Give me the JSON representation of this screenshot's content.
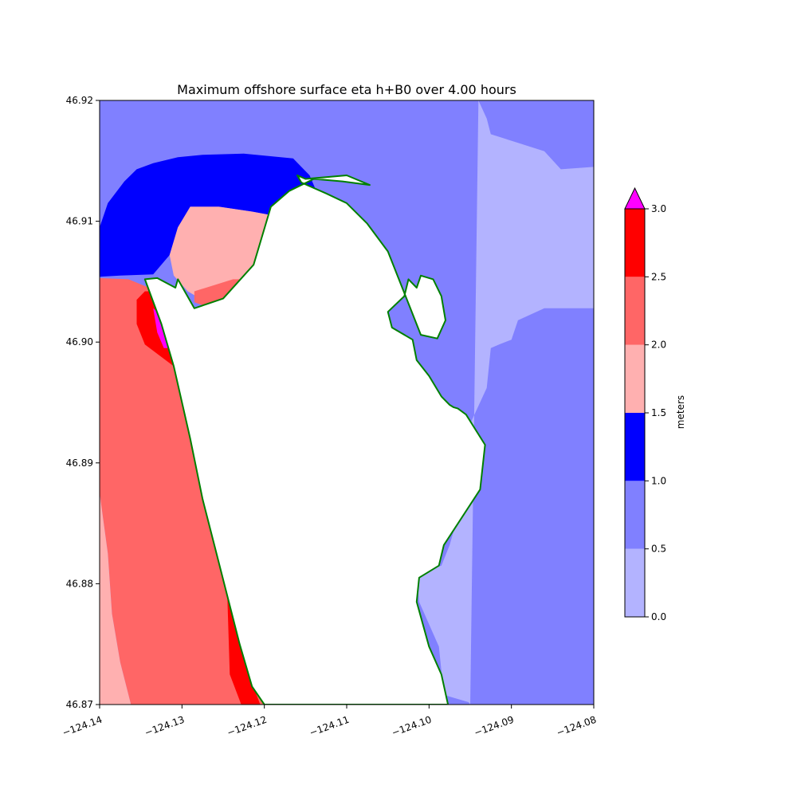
{
  "chart_data": {
    "type": "heatmap",
    "title": "Maximum offshore surface eta h+B0 over 4.00 hours",
    "xlabel": "",
    "ylabel": "",
    "xlim": [
      -124.14,
      -124.08
    ],
    "ylim": [
      46.87,
      46.92
    ],
    "x_ticks": [
      -124.14,
      -124.13,
      -124.12,
      -124.11,
      -124.1,
      -124.09,
      -124.08
    ],
    "x_tick_labels": [
      "−124.14",
      "−124.13",
      "−124.12",
      "−124.11",
      "−124.10",
      "−124.09",
      "−124.08"
    ],
    "y_ticks": [
      46.87,
      46.88,
      46.89,
      46.9,
      46.91,
      46.92
    ],
    "y_tick_labels": [
      "46.87",
      "46.88",
      "46.89",
      "46.90",
      "46.91",
      "46.92"
    ],
    "grid": false,
    "shoreline_color": "#008000",
    "land_color": "#ffffff",
    "colorbar": {
      "label": "meters",
      "extend": "max",
      "bounds": [
        0.0,
        0.5,
        1.0,
        1.5,
        2.0,
        2.5,
        3.0
      ],
      "tick_labels": [
        "0.0",
        "0.5",
        "1.0",
        "1.5",
        "2.0",
        "2.5",
        "3.0"
      ],
      "colors": [
        "#b3b3ff",
        "#8080ff",
        "#0000ff",
        "#ffb0b0",
        "#ff6666",
        "#ff0000"
      ],
      "over_color": "#ff00ff"
    },
    "regions": [
      {
        "level": "0.0-0.5",
        "color": "#b3b3ff",
        "lon": [
          -124.094,
          -124.093,
          -124.0925,
          -124.086,
          -124.084,
          -124.08,
          -124.08,
          -124.086,
          -124.0892,
          -124.09,
          -124.0915,
          -124.0925,
          -124.093,
          -124.0955,
          -124.0965,
          -124.097,
          -124.0975,
          -124.0985,
          -124.1,
          -124.1015,
          -124.1012,
          -124.0988,
          -124.0982,
          -124.0952,
          -124.095
        ],
        "lat": [
          46.92,
          46.9185,
          46.9172,
          46.9158,
          46.9143,
          46.9145,
          46.9028,
          46.9028,
          46.9018,
          46.9002,
          46.8998,
          46.8995,
          46.8962,
          46.8925,
          46.8888,
          46.8844,
          46.8832,
          46.8815,
          46.8812,
          46.8805,
          46.8785,
          46.8748,
          46.8708,
          46.8702,
          46.87
        ]
      },
      {
        "level": "1.0-1.5",
        "color": "#0000ff",
        "lon": [
          -124.14,
          -124.139,
          -124.137,
          -124.1355,
          -124.1335,
          -124.1305,
          -124.1275,
          -124.1225,
          -124.1165,
          -124.1145,
          -124.1135,
          -124.114,
          -124.1175,
          -124.1215,
          -124.1255,
          -124.129,
          -124.1305,
          -124.1315,
          -124.1335,
          -124.1375,
          -124.14
        ],
        "lat": [
          46.9095,
          46.9115,
          46.9133,
          46.9143,
          46.9148,
          46.9153,
          46.9155,
          46.9156,
          46.9152,
          46.9138,
          46.9122,
          46.9105,
          46.9103,
          46.9108,
          46.9112,
          46.9112,
          46.9095,
          46.9072,
          46.9056,
          46.9055,
          46.9054
        ]
      },
      {
        "level": "1.5-2.0",
        "color": "#ffb0b0",
        "lon": [
          -124.1315,
          -124.1305,
          -124.129,
          -124.1255,
          -124.1215,
          -124.1175,
          -124.114,
          -124.1148,
          -124.1163,
          -124.1178,
          -124.1195,
          -124.1238,
          -124.1268,
          -124.1293,
          -124.131
        ],
        "lat": [
          46.9072,
          46.9095,
          46.9112,
          46.9112,
          46.9108,
          46.9103,
          46.9105,
          46.9085,
          46.9062,
          46.9045,
          46.9028,
          46.9025,
          46.9032,
          46.9042,
          46.9055
        ]
      },
      {
        "level": "2.0-2.5",
        "color": "#ff6666",
        "lon": [
          -124.1285,
          -124.1238,
          -124.1205,
          -124.1225,
          -124.1245,
          -124.1265,
          -124.1285
        ],
        "lat": [
          46.9042,
          46.9052,
          46.9052,
          46.9036,
          46.9032,
          46.9028,
          46.9033
        ]
      },
      {
        "level": "2.0-2.5",
        "color": "#ff6666",
        "lon": [
          -124.14,
          -124.1365,
          -124.134,
          -124.133,
          -124.131,
          -124.129,
          -124.1275,
          -124.126,
          -124.1245,
          -124.123,
          -124.1215,
          -124.12,
          -124.1362,
          -124.1375,
          -124.1385,
          -124.139,
          -124.14
        ],
        "lat": [
          46.9053,
          46.9052,
          46.9045,
          46.9015,
          46.898,
          46.892,
          46.887,
          46.883,
          46.879,
          46.875,
          46.8715,
          46.87,
          46.87,
          46.8735,
          46.8775,
          46.8825,
          46.8875
        ]
      },
      {
        "level": "1.5-2.0",
        "color": "#ffb0b0",
        "lon": [
          -124.14,
          -124.139,
          -124.1385,
          -124.1375,
          -124.1362,
          -124.14
        ],
        "lat": [
          46.8875,
          46.8825,
          46.8775,
          46.8735,
          46.87,
          46.87
        ]
      },
      {
        "level": "2.5-3.0",
        "color": "#ff0000",
        "lon": [
          -124.1355,
          -124.1345,
          -124.1335,
          -124.1318,
          -124.131,
          -124.1345,
          -124.1355
        ],
        "lat": [
          46.9035,
          46.9042,
          46.9042,
          46.9012,
          46.898,
          46.8998,
          46.9015
        ]
      },
      {
        "level": "2.5-3.0",
        "color": "#ff0000",
        "lon": [
          -124.1245,
          -124.1238,
          -124.123,
          -124.1215,
          -124.1205,
          -124.1228,
          -124.1242
        ],
        "lat": [
          46.879,
          46.8782,
          46.8752,
          46.8718,
          46.87,
          46.87,
          46.8725
        ]
      },
      {
        "level": "above 3.0",
        "color": "#ff00ff",
        "lon": [
          -124.1335,
          -124.1325,
          -124.1315,
          -124.1322,
          -124.133
        ],
        "lat": [
          46.9028,
          46.9022,
          46.8995,
          46.8995,
          46.9008
        ]
      }
    ],
    "land_area": {
      "lon": [
        -124.1345,
        -124.1325,
        -124.131,
        -124.129,
        -124.1275,
        -124.126,
        -124.1245,
        -124.123,
        -124.1215,
        -124.12,
        -124.0977,
        -124.0985,
        -124.1,
        -124.1015,
        -124.1012,
        -124.0988,
        -124.0982,
        -124.0938,
        -124.0932,
        -124.0955,
        -124.0965,
        -124.097,
        -124.0975,
        -124.0985,
        -124.1,
        -124.1015,
        -124.102,
        -124.1045,
        -124.105,
        -124.103,
        -124.1025,
        -124.1015,
        -124.101,
        -124.0995,
        -124.0985,
        -124.098,
        -124.099,
        -124.101,
        -124.1025,
        -124.105,
        -124.1075,
        -124.11,
        -124.1125,
        -124.1155,
        -124.116,
        -124.115,
        -124.11,
        -124.1072,
        -124.1105,
        -124.114,
        -124.117,
        -124.1192,
        -124.1213,
        -124.125,
        -124.1285,
        -124.1305,
        -124.1308,
        -124.133
      ],
      "lat": [
        46.9052,
        46.9015,
        46.898,
        46.892,
        46.887,
        46.883,
        46.879,
        46.875,
        46.8715,
        46.87,
        46.87,
        46.8725,
        46.8748,
        46.8785,
        46.8805,
        46.8815,
        46.8832,
        46.8878,
        46.8915,
        46.894,
        46.8945,
        46.8946,
        46.8948,
        46.8955,
        46.8972,
        46.8985,
        46.9002,
        46.9012,
        46.9025,
        46.9038,
        46.9052,
        46.9045,
        46.9055,
        46.9052,
        46.9038,
        46.9018,
        46.9003,
        46.9006,
        46.9032,
        46.9075,
        46.9098,
        46.9115,
        46.9123,
        46.9132,
        46.9138,
        46.9135,
        46.9138,
        46.913,
        46.9133,
        46.9135,
        46.9125,
        46.9112,
        46.9064,
        46.9036,
        46.9028,
        46.9052,
        46.9045,
        46.9053
      ]
    }
  }
}
